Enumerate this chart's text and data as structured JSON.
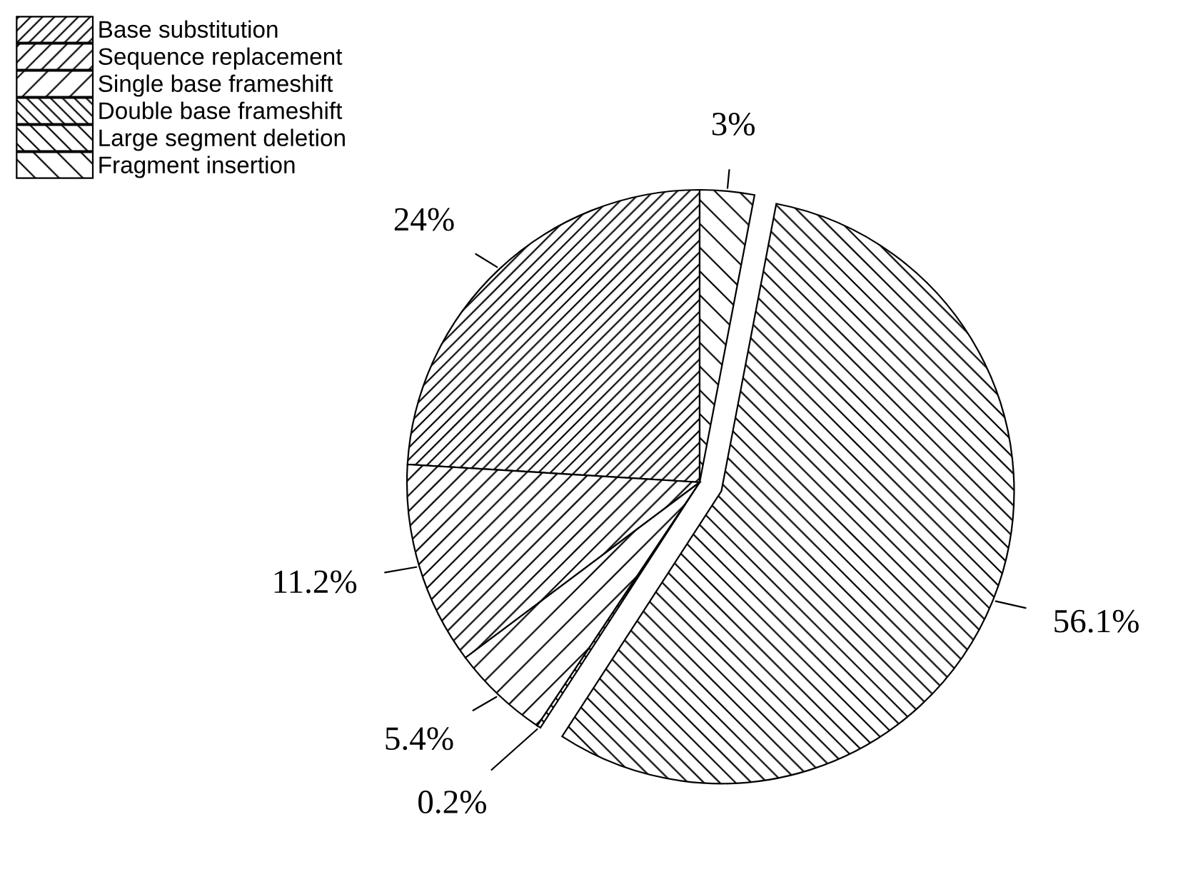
{
  "chart_data": {
    "type": "pie",
    "categories": [
      "Base substitution",
      "Sequence replacement",
      "Single base frameshift",
      "Double base frameshift",
      "Large segment deletion",
      "Fragment insertion"
    ],
    "values": [
      24,
      11.2,
      5.4,
      0.2,
      56.1,
      3
    ],
    "value_labels": [
      "24%",
      "11.2%",
      "5.4%",
      "0.2%",
      "56.1%",
      "3%"
    ],
    "colors": [
      "#ffffff",
      "#ffffff",
      "#ffffff",
      "#ffffff",
      "#ffffff",
      "#ffffff"
    ],
    "legend": "top left"
  }
}
